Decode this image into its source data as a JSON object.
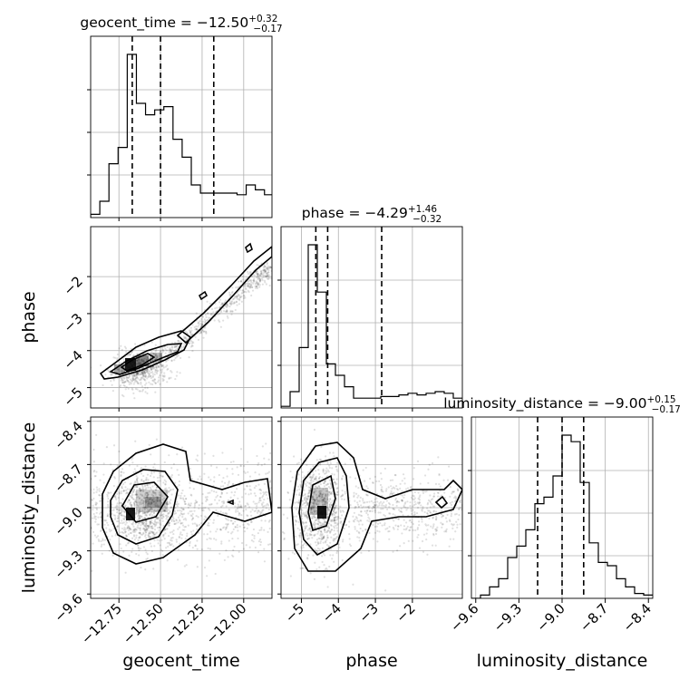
{
  "chart_data": {
    "type": "corner",
    "parameters": [
      "geocent_time",
      "phase",
      "luminosity_distance"
    ],
    "titles": [
      {
        "text": "geocent_time = −12.50",
        "plus": "+0.32",
        "minus": "−0.17"
      },
      {
        "text": "phase = −4.29",
        "plus": "+1.46",
        "minus": "−0.32"
      },
      {
        "text": "luminosity_distance = −9.00",
        "plus": "+0.15",
        "minus": "−0.17"
      }
    ],
    "ranges": {
      "geocent_time": [
        -12.92,
        -11.83
      ],
      "phase": [
        -5.55,
        -0.65
      ],
      "luminosity_distance": [
        -9.63,
        -8.37
      ]
    },
    "ticks": {
      "geocent_time": {
        "values": [
          -12.75,
          -12.5,
          -12.25,
          -12.0
        ],
        "labels": [
          "−12.75",
          "−12.50",
          "−12.25",
          "−12.00"
        ]
      },
      "phase": {
        "values": [
          -5,
          -4,
          -3,
          -2
        ],
        "labels": [
          "−5",
          "−4",
          "−3",
          "−2"
        ]
      },
      "luminosity_distance": {
        "values": [
          -9.6,
          -9.3,
          -9.0,
          -8.7,
          -8.4
        ],
        "labels": [
          "−9.6",
          "−9.3",
          "−9.0",
          "−8.7",
          "−8.4"
        ]
      }
    },
    "quantiles": {
      "geocent_time": [
        -12.67,
        -12.5,
        -12.18
      ],
      "phase": [
        -4.61,
        -4.29,
        -2.83
      ],
      "luminosity_distance": [
        -9.17,
        -9.0,
        -8.85
      ]
    },
    "histograms": {
      "geocent_time": {
        "edges": [
          -12.92,
          -12.865,
          -12.81,
          -12.755,
          -12.7,
          -12.645,
          -12.59,
          -12.535,
          -12.48,
          -12.425,
          -12.37,
          -12.315,
          -12.26,
          -12.205,
          -12.15,
          -12.095,
          -12.04,
          -11.985,
          -11.93,
          -11.875,
          -11.83
        ],
        "counts": [
          0.02,
          0.1,
          0.33,
          0.43,
          1.0,
          0.7,
          0.63,
          0.66,
          0.68,
          0.48,
          0.37,
          0.2,
          0.15,
          0.15,
          0.15,
          0.15,
          0.14,
          0.2,
          0.17,
          0.14
        ]
      },
      "phase": {
        "edges": [
          -5.55,
          -5.305,
          -5.06,
          -4.815,
          -4.57,
          -4.325,
          -4.08,
          -3.835,
          -3.59,
          -3.345,
          -3.1,
          -2.855,
          -2.61,
          -2.365,
          -2.12,
          -1.875,
          -1.63,
          -1.385,
          -1.14,
          -0.895,
          -0.65
        ],
        "counts": [
          0.01,
          0.1,
          0.37,
          1.0,
          0.71,
          0.27,
          0.2,
          0.13,
          0.06,
          0.06,
          0.06,
          0.07,
          0.07,
          0.08,
          0.09,
          0.08,
          0.09,
          0.1,
          0.09,
          0.06
        ]
      },
      "luminosity_distance": {
        "edges": [
          -9.63,
          -9.567,
          -9.504,
          -9.441,
          -9.378,
          -9.315,
          -9.252,
          -9.189,
          -9.126,
          -9.063,
          -9.0,
          -8.937,
          -8.874,
          -8.811,
          -8.748,
          -8.685,
          -8.622,
          -8.559,
          -8.496,
          -8.433,
          -8.37
        ],
        "counts": [
          0.0,
          0.02,
          0.07,
          0.12,
          0.25,
          0.32,
          0.42,
          0.58,
          0.62,
          0.75,
          1.0,
          0.96,
          0.71,
          0.34,
          0.22,
          0.2,
          0.12,
          0.07,
          0.03,
          0.02
        ]
      }
    },
    "density_modes": [
      {
        "x": "geocent_time",
        "y": "phase",
        "mode": [
          -12.67,
          -4.55
        ],
        "ridge": [
          [
            -12.75,
            -4.8
          ],
          [
            -12.5,
            -4.25
          ],
          [
            -12.25,
            -3.35
          ],
          [
            -12.0,
            -2.35
          ],
          [
            -11.85,
            -1.75
          ]
        ]
      },
      {
        "x": "geocent_time",
        "y": "luminosity_distance",
        "mode": [
          -12.68,
          -9.03
        ]
      },
      {
        "x": "phase",
        "y": "luminosity_distance",
        "mode": [
          -4.57,
          -9.03
        ]
      }
    ],
    "grid": true
  }
}
